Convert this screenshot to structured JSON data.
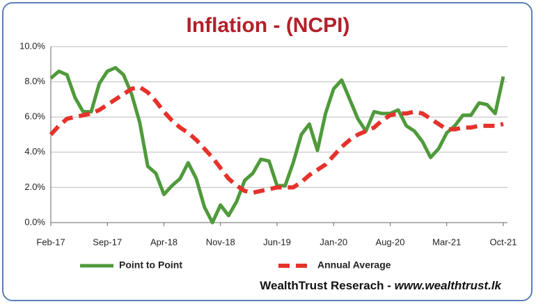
{
  "chart_data": {
    "type": "line",
    "title": "Inflation - (NCPI)",
    "categories": [
      "Feb-17",
      null,
      null,
      null,
      null,
      null,
      null,
      "Sep-17",
      null,
      null,
      null,
      null,
      null,
      null,
      "Apr-18",
      null,
      null,
      null,
      null,
      null,
      null,
      "Nov-18",
      null,
      null,
      null,
      null,
      null,
      null,
      "Jun-19",
      null,
      null,
      null,
      null,
      null,
      null,
      "Jan-20",
      null,
      null,
      null,
      null,
      null,
      null,
      "Aug-20",
      null,
      null,
      null,
      null,
      null,
      null,
      "Mar-21",
      null,
      null,
      null,
      null,
      null,
      null,
      "Oct-21"
    ],
    "series": [
      {
        "name": "Point to Point",
        "color": "#4f9a3b",
        "dash": false,
        "values": [
          8.2,
          8.6,
          8.4,
          7.1,
          6.3,
          6.3,
          7.9,
          8.6,
          8.8,
          8.4,
          7.3,
          5.7,
          3.2,
          2.8,
          1.6,
          2.1,
          2.5,
          3.4,
          2.5,
          0.9,
          0.0,
          1.0,
          0.4,
          1.2,
          2.4,
          2.8,
          3.6,
          3.5,
          2.1,
          2.1,
          3.4,
          5.0,
          5.6,
          4.1,
          6.2,
          7.6,
          8.1,
          7.0,
          5.9,
          5.2,
          6.3,
          6.2,
          6.2,
          6.4,
          5.5,
          5.2,
          4.6,
          3.7,
          4.2,
          5.1,
          5.5,
          6.1,
          6.1,
          6.8,
          6.7,
          6.2,
          8.3
        ]
      },
      {
        "name": "Annual Average",
        "color": "#e5322b",
        "dash": true,
        "values": [
          5.0,
          5.5,
          5.9,
          6.0,
          6.1,
          6.2,
          6.4,
          6.7,
          7.0,
          7.3,
          7.6,
          7.7,
          7.4,
          6.9,
          6.3,
          5.8,
          5.4,
          5.1,
          4.7,
          4.2,
          3.7,
          3.1,
          2.5,
          2.1,
          1.8,
          1.7,
          1.8,
          1.9,
          2.0,
          2.0,
          2.0,
          2.3,
          2.7,
          3.0,
          3.3,
          3.8,
          4.3,
          4.7,
          5.0,
          5.2,
          5.4,
          5.8,
          6.1,
          6.2,
          6.2,
          6.3,
          6.2,
          5.9,
          5.6,
          5.3,
          5.3,
          5.4,
          5.4,
          5.5,
          5.5,
          5.5,
          5.6
        ]
      }
    ],
    "ylim": [
      0,
      10
    ],
    "yticks": [
      {
        "value": 0,
        "label": "0.0%"
      },
      {
        "value": 2,
        "label": "2.0%"
      },
      {
        "value": 4,
        "label": "4.0%"
      },
      {
        "value": 6,
        "label": "6.0%"
      },
      {
        "value": 8,
        "label": "8.0%"
      },
      {
        "value": 10,
        "label": "10.0%"
      }
    ],
    "grid": true,
    "legend": "bottom",
    "source": [
      "WealthTrust  Reserach -",
      "www.wealthtrust.lk"
    ]
  }
}
